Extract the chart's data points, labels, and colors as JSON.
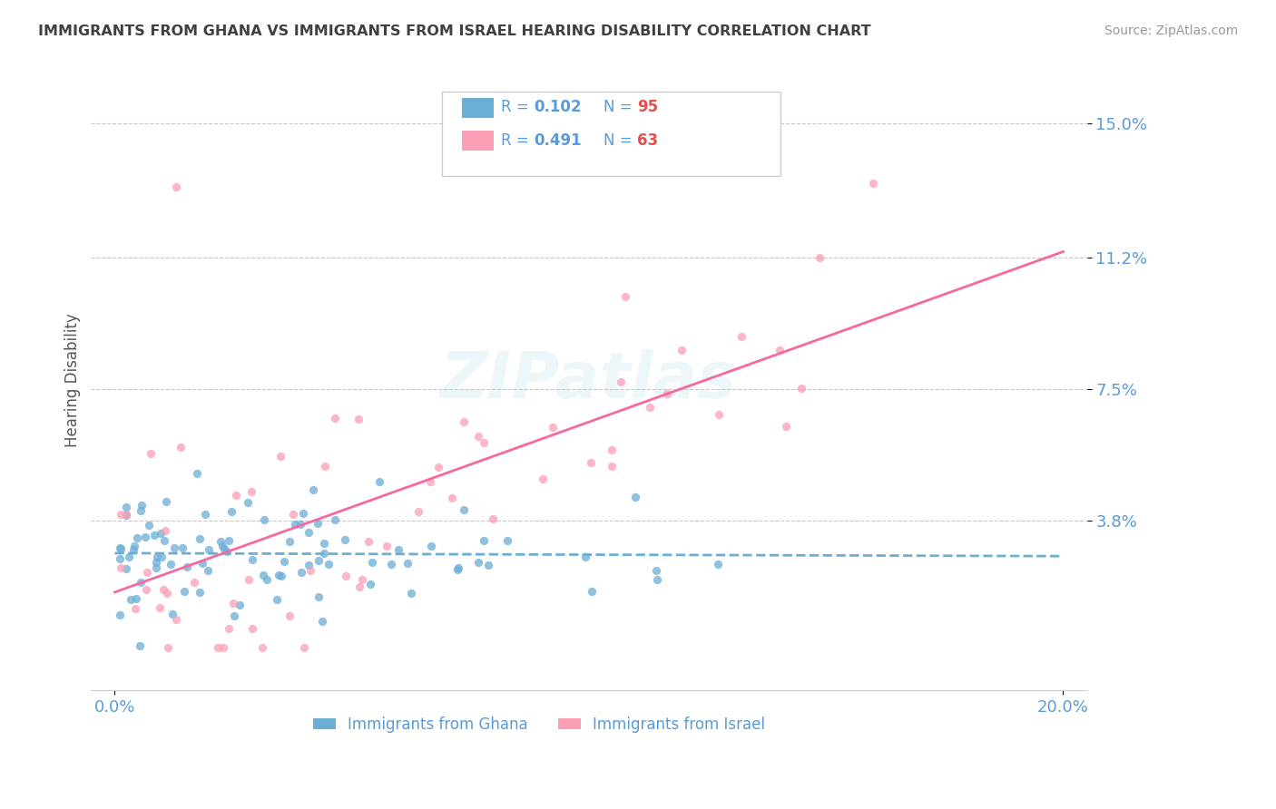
{
  "title": "IMMIGRANTS FROM GHANA VS IMMIGRANTS FROM ISRAEL HEARING DISABILITY CORRELATION CHART",
  "source": "Source: ZipAtlas.com",
  "ylabel": "Hearing Disability",
  "xlim": [
    -0.005,
    0.205
  ],
  "ylim": [
    -0.01,
    0.165
  ],
  "yticks": [
    0.038,
    0.075,
    0.112,
    0.15
  ],
  "ytick_labels": [
    "3.8%",
    "7.5%",
    "11.2%",
    "15.0%"
  ],
  "xtick_labels": [
    "0.0%",
    "20.0%"
  ],
  "ghana_color": "#6baed6",
  "israel_color": "#fa9fb5",
  "ghana_R": 0.102,
  "ghana_N": 95,
  "israel_R": 0.491,
  "israel_N": 63,
  "ghana_line_color": "#6baed6",
  "israel_line_color": "#f768a1",
  "title_color": "#404040",
  "axis_color": "#5b9bd5",
  "legend_label_ghana": "Immigrants from Ghana",
  "legend_label_israel": "Immigrants from Israel",
  "background_color": "#ffffff",
  "grid_color": "#c8c8c8"
}
